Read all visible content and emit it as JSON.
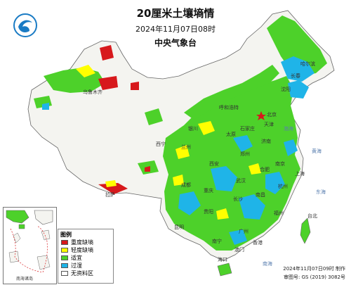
{
  "header": {
    "title": "20厘米土壤墒情",
    "date": "2024年11月07日08时",
    "agency": "中央气象台"
  },
  "legend": {
    "title": "图例",
    "items": [
      {
        "label": "重度缺墒",
        "color": "#d7191c"
      },
      {
        "label": "轻度缺墒",
        "color": "#ffff00"
      },
      {
        "label": "适宜",
        "color": "#4dd12a"
      },
      {
        "label": "过湿",
        "color": "#1fb4e8"
      },
      {
        "label": "无资料区",
        "color": "#ffffff"
      }
    ]
  },
  "inset": {
    "label": "南海诸岛"
  },
  "footer": {
    "issued": "2024年11月07日09时 制作",
    "approval": "审图号: GS (2019) 3082号"
  },
  "cities": {
    "harbin": "哈尔滨",
    "changchun": "长春",
    "shenyang": "沈阳",
    "hohhot": "呼和浩特",
    "beijing": "北京",
    "tianjin": "天津",
    "shijiazhuang": "石家庄",
    "taiyuan": "太原",
    "jinan": "济南",
    "yinchuan": "银川",
    "lanzhou": "兰州",
    "xining": "西宁",
    "zhengzhou": "郑州",
    "xian": "西安",
    "hefei": "合肥",
    "nanjing": "南京",
    "shanghai": "上海",
    "wuhan": "武汉",
    "chengdu": "成都",
    "chongqing": "重庆",
    "hangzhou": "杭州",
    "changsha": "长沙",
    "nanchang": "南昌",
    "fuzhou": "福州",
    "guiyang": "贵阳",
    "kunming": "昆明",
    "nanning": "南宁",
    "guangzhou": "广州",
    "taipei": "台北",
    "hongkong": "香港",
    "macau": "澳门",
    "haikou": "海口",
    "urumqi": "乌鲁木齐",
    "lhasa": "拉萨"
  },
  "seas": {
    "bohai": "渤海",
    "yellow_sea": "黄海",
    "east_sea": "东海",
    "south_sea": "南海"
  }
}
